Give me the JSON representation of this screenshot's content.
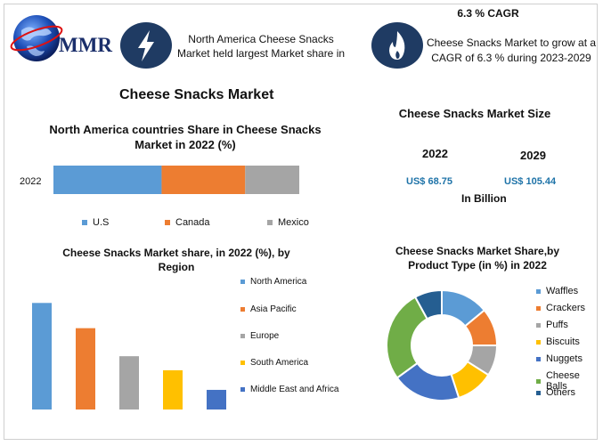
{
  "header": {
    "logo_text": "MMR",
    "stat1_text": "North America Cheese Snacks Market held largest Market share in",
    "cagr_title": "6.3 % CAGR",
    "stat2_text": "Cheese Snacks Market to grow at a CAGR of 6.3 % during 2023-2029",
    "icon1": "lightning-icon",
    "icon2": "flame-icon"
  },
  "main_title": "Cheese Snacks Market",
  "colors": {
    "blue": "#5b9bd5",
    "orange": "#ed7d31",
    "gray": "#a5a5a5",
    "yellow": "#ffc000",
    "navy": "#4472c4",
    "green": "#70ad47",
    "darkblue": "#255e91",
    "teal": "#1e73a8"
  },
  "market_size": {
    "title": "Cheese Snacks Market Size",
    "years": [
      "2022",
      "2029"
    ],
    "values": [
      "US$ 68.75",
      "US$ 105.44"
    ],
    "unit": "In Billion"
  },
  "chart_data": [
    {
      "type": "bar",
      "orientation": "horizontal-stacked",
      "title": "North America countries Share in Cheese Snacks Market in 2022 (%)",
      "categories": [
        "2022"
      ],
      "series": [
        {
          "name": "U.S",
          "values": [
            44
          ]
        },
        {
          "name": "Canada",
          "values": [
            34
          ]
        },
        {
          "name": "Mexico",
          "values": [
            22
          ]
        }
      ],
      "xlim": [
        0,
        100
      ],
      "legend": "bottom"
    },
    {
      "type": "bar",
      "title": "Cheese Snacks Market share, in 2022 (%), by Region",
      "categories": [
        "North America",
        "Asia Pacific",
        "Europe",
        "South America",
        "Middle East and Africa"
      ],
      "values": [
        38,
        29,
        19,
        14,
        7
      ],
      "ylim": [
        0,
        40
      ],
      "legend": "right"
    },
    {
      "type": "pie",
      "variant": "donut",
      "title": "Cheese Snacks Market Share,by Product Type (in %) in 2022",
      "categories": [
        "Waffles",
        "Crackers",
        "Puffs",
        "Biscuits",
        "Nuggets",
        "Cheese Balls",
        "Others"
      ],
      "values": [
        14,
        11,
        9,
        11,
        20,
        27,
        8
      ],
      "legend": "right"
    }
  ]
}
